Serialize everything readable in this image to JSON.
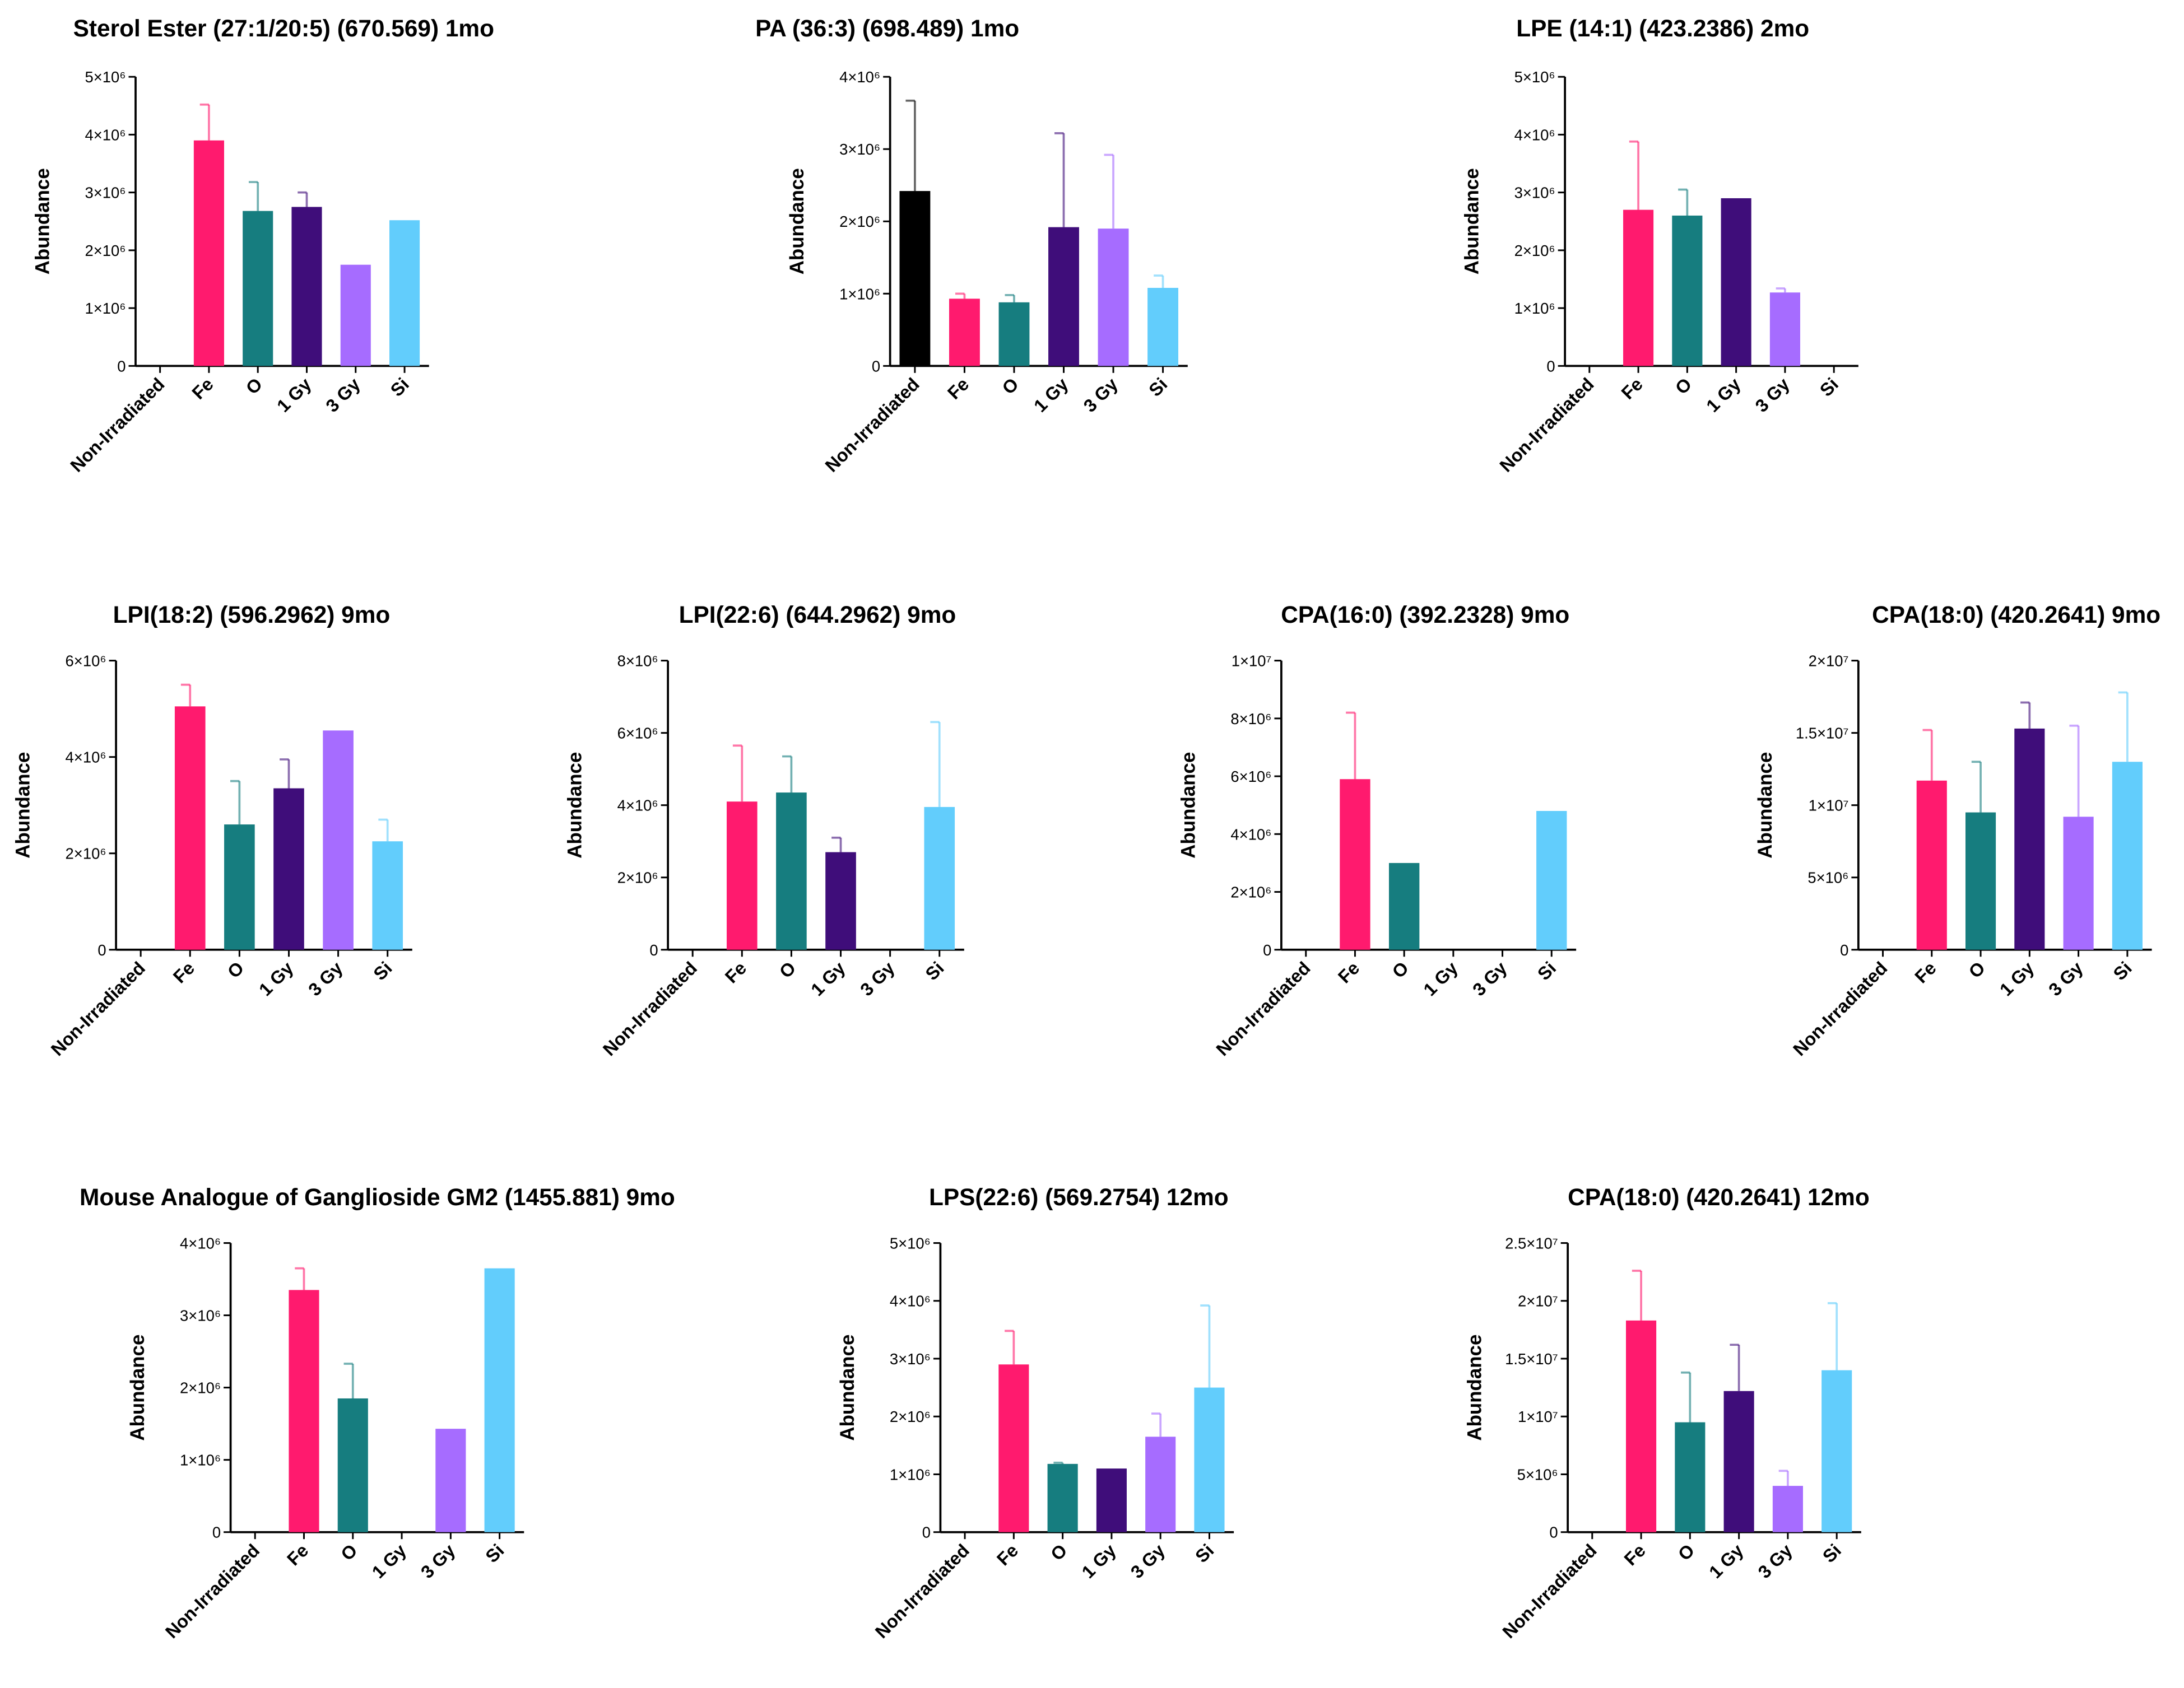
{
  "chart_data": [
    {
      "type": "bar",
      "title": "Sterol Ester (27:1/20:5) (670.569) 1mo",
      "y_label": "Abundance",
      "categories": [
        "Non-Irradiated",
        "Fe",
        "O",
        "1 Gy",
        "3 Gy",
        "Si"
      ],
      "values": [
        null,
        3900000,
        2680000,
        2750000,
        1750000,
        2520000
      ],
      "errors": [
        null,
        620000,
        500000,
        250000,
        null,
        null
      ],
      "colors": [
        "#000000",
        "#ff1a6e",
        "#167d7f",
        "#3f0d7a",
        "#a66cff",
        "#62cdfc"
      ],
      "ylim": [
        0,
        5000000
      ],
      "yticks": [
        0,
        {
          "value": 1000000,
          "label": "1×10⁶"
        },
        {
          "value": 2000000,
          "label": "2×10⁶"
        },
        {
          "value": 3000000,
          "label": "3×10⁶"
        },
        {
          "value": 4000000,
          "label": "4×10⁶"
        },
        {
          "value": 5000000,
          "label": "5×10⁶"
        }
      ]
    },
    {
      "type": "bar",
      "title": "PA (36:3) (698.489) 1mo",
      "y_label": "Abundance",
      "categories": [
        "Non-Irradiated",
        "Fe",
        "O",
        "1 Gy",
        "3 Gy",
        "Si"
      ],
      "values": [
        2420000,
        930000,
        880000,
        1920000,
        1900000,
        1080000
      ],
      "errors": [
        1250000,
        70000,
        100000,
        1300000,
        1020000,
        170000
      ],
      "colors": [
        "#000000",
        "#ff1a6e",
        "#167d7f",
        "#3f0d7a",
        "#a66cff",
        "#62cdfc"
      ],
      "ylim": [
        0,
        4000000
      ],
      "yticks": [
        0,
        {
          "value": 1000000,
          "label": "1×10⁶"
        },
        {
          "value": 2000000,
          "label": "2×10⁶"
        },
        {
          "value": 3000000,
          "label": "3×10⁶"
        },
        {
          "value": 4000000,
          "label": "4×10⁶"
        }
      ]
    },
    {
      "type": "bar",
      "title": "LPE (14:1) (423.2386) 2mo",
      "y_label": "Abundance",
      "categories": [
        "Non-Irradiated",
        "Fe",
        "O",
        "1 Gy",
        "3 Gy",
        "Si"
      ],
      "values": [
        null,
        2700000,
        2600000,
        2900000,
        1270000,
        null
      ],
      "errors": [
        null,
        1180000,
        450000,
        null,
        70000,
        null
      ],
      "colors": [
        "#000000",
        "#ff1a6e",
        "#167d7f",
        "#3f0d7a",
        "#a66cff",
        "#62cdfc"
      ],
      "ylim": [
        0,
        5000000
      ],
      "yticks": [
        0,
        {
          "value": 1000000,
          "label": "1×10⁶"
        },
        {
          "value": 2000000,
          "label": "2×10⁶"
        },
        {
          "value": 3000000,
          "label": "3×10⁶"
        },
        {
          "value": 4000000,
          "label": "4×10⁶"
        },
        {
          "value": 5000000,
          "label": "5×10⁶"
        }
      ]
    },
    {
      "type": "bar",
      "title": "LPI(18:2) (596.2962) 9mo",
      "y_label": "Abundance",
      "categories": [
        "Non-Irradiated",
        "Fe",
        "O",
        "1 Gy",
        "3 Gy",
        "Si"
      ],
      "values": [
        null,
        5050000,
        2600000,
        3350000,
        4550000,
        2250000
      ],
      "errors": [
        null,
        450000,
        900000,
        600000,
        null,
        450000
      ],
      "colors": [
        "#000000",
        "#ff1a6e",
        "#167d7f",
        "#3f0d7a",
        "#a66cff",
        "#62cdfc"
      ],
      "ylim": [
        0,
        6000000
      ],
      "yticks": [
        0,
        {
          "value": 2000000,
          "label": "2×10⁶"
        },
        {
          "value": 4000000,
          "label": "4×10⁶"
        },
        {
          "value": 6000000,
          "label": "6×10⁶"
        }
      ]
    },
    {
      "type": "bar",
      "title": "LPI(22:6) (644.2962) 9mo",
      "y_label": "Abundance",
      "categories": [
        "Non-Irradiated",
        "Fe",
        "O",
        "1 Gy",
        "3 Gy",
        "Si"
      ],
      "values": [
        null,
        4100000,
        4350000,
        2700000,
        null,
        3950000
      ],
      "errors": [
        null,
        1550000,
        1000000,
        400000,
        null,
        2350000
      ],
      "colors": [
        "#000000",
        "#ff1a6e",
        "#167d7f",
        "#3f0d7a",
        "#a66cff",
        "#62cdfc"
      ],
      "ylim": [
        0,
        8000000
      ],
      "yticks": [
        0,
        {
          "value": 2000000,
          "label": "2×10⁶"
        },
        {
          "value": 4000000,
          "label": "4×10⁶"
        },
        {
          "value": 6000000,
          "label": "6×10⁶"
        },
        {
          "value": 8000000,
          "label": "8×10⁶"
        }
      ]
    },
    {
      "type": "bar",
      "title": "CPA(16:0) (392.2328) 9mo",
      "y_label": "Abundance",
      "categories": [
        "Non-Irradiated",
        "Fe",
        "O",
        "1 Gy",
        "3 Gy",
        "Si"
      ],
      "values": [
        null,
        5900000,
        3000000,
        null,
        null,
        4800000
      ],
      "errors": [
        null,
        2300000,
        null,
        null,
        null,
        null
      ],
      "colors": [
        "#000000",
        "#ff1a6e",
        "#167d7f",
        "#3f0d7a",
        "#a66cff",
        "#62cdfc"
      ],
      "ylim": [
        0,
        10000000
      ],
      "yticks": [
        0,
        {
          "value": 2000000,
          "label": "2×10⁶"
        },
        {
          "value": 4000000,
          "label": "4×10⁶"
        },
        {
          "value": 6000000,
          "label": "6×10⁶"
        },
        {
          "value": 8000000,
          "label": "8×10⁶"
        },
        {
          "value": 10000000,
          "label": "1×10⁷"
        }
      ]
    },
    {
      "type": "bar",
      "title": "CPA(18:0) (420.2641) 9mo",
      "y_label": "Abundance",
      "categories": [
        "Non-Irradiated",
        "Fe",
        "O",
        "1 Gy",
        "3 Gy",
        "Si"
      ],
      "values": [
        null,
        11700000,
        9500000,
        15300000,
        9200000,
        13000000
      ],
      "errors": [
        null,
        3500000,
        3500000,
        1800000,
        6300000,
        4800000
      ],
      "colors": [
        "#000000",
        "#ff1a6e",
        "#167d7f",
        "#3f0d7a",
        "#a66cff",
        "#62cdfc"
      ],
      "ylim": [
        0,
        20000000
      ],
      "yticks": [
        0,
        {
          "value": 5000000,
          "label": "5×10⁶"
        },
        {
          "value": 10000000,
          "label": "1×10⁷"
        },
        {
          "value": 15000000,
          "label": "1.5×10⁷"
        },
        {
          "value": 20000000,
          "label": "2×10⁷"
        }
      ]
    },
    {
      "type": "bar",
      "title": "Mouse Analogue of Ganglioside GM2 (1455.881) 9mo",
      "y_label": "Abundance",
      "categories": [
        "Non-Irradiated",
        "Fe",
        "O",
        "1 Gy",
        "3 Gy",
        "Si"
      ],
      "values": [
        null,
        3350000,
        1850000,
        null,
        1430000,
        3650000
      ],
      "errors": [
        null,
        300000,
        480000,
        null,
        null,
        null
      ],
      "colors": [
        "#000000",
        "#ff1a6e",
        "#167d7f",
        "#3f0d7a",
        "#a66cff",
        "#62cdfc"
      ],
      "ylim": [
        0,
        4000000
      ],
      "yticks": [
        0,
        {
          "value": 1000000,
          "label": "1×10⁶"
        },
        {
          "value": 2000000,
          "label": "2×10⁶"
        },
        {
          "value": 3000000,
          "label": "3×10⁶"
        },
        {
          "value": 4000000,
          "label": "4×10⁶"
        }
      ]
    },
    {
      "type": "bar",
      "title": "LPS(22:6) (569.2754) 12mo",
      "y_label": "Abundance",
      "categories": [
        "Non-Irradiated",
        "Fe",
        "O",
        "1 Gy",
        "3 Gy",
        "Si"
      ],
      "values": [
        null,
        2900000,
        1180000,
        1100000,
        1650000,
        2500000
      ],
      "errors": [
        null,
        580000,
        20000,
        null,
        400000,
        1420000
      ],
      "colors": [
        "#000000",
        "#ff1a6e",
        "#167d7f",
        "#3f0d7a",
        "#a66cff",
        "#62cdfc"
      ],
      "ylim": [
        0,
        5000000
      ],
      "yticks": [
        0,
        {
          "value": 1000000,
          "label": "1×10⁶"
        },
        {
          "value": 2000000,
          "label": "2×10⁶"
        },
        {
          "value": 3000000,
          "label": "3×10⁶"
        },
        {
          "value": 4000000,
          "label": "4×10⁶"
        },
        {
          "value": 5000000,
          "label": "5×10⁶"
        }
      ]
    },
    {
      "type": "bar",
      "title": "CPA(18:0) (420.2641) 12mo",
      "y_label": "Abundance",
      "categories": [
        "Non-Irradiated",
        "Fe",
        "O",
        "1 Gy",
        "3 Gy",
        "Si"
      ],
      "values": [
        null,
        18300000,
        9500000,
        12200000,
        4000000,
        14000000
      ],
      "errors": [
        null,
        4300000,
        4300000,
        4000000,
        1300000,
        5800000
      ],
      "colors": [
        "#000000",
        "#ff1a6e",
        "#167d7f",
        "#3f0d7a",
        "#a66cff",
        "#62cdfc"
      ],
      "ylim": [
        0,
        25000000
      ],
      "yticks": [
        0,
        {
          "value": 5000000,
          "label": "5×10⁶"
        },
        {
          "value": 10000000,
          "label": "1×10⁷"
        },
        {
          "value": 15000000,
          "label": "1.5×10⁷"
        },
        {
          "value": 20000000,
          "label": "2×10⁷"
        },
        {
          "value": 25000000,
          "label": "2.5×10⁷"
        }
      ]
    }
  ]
}
